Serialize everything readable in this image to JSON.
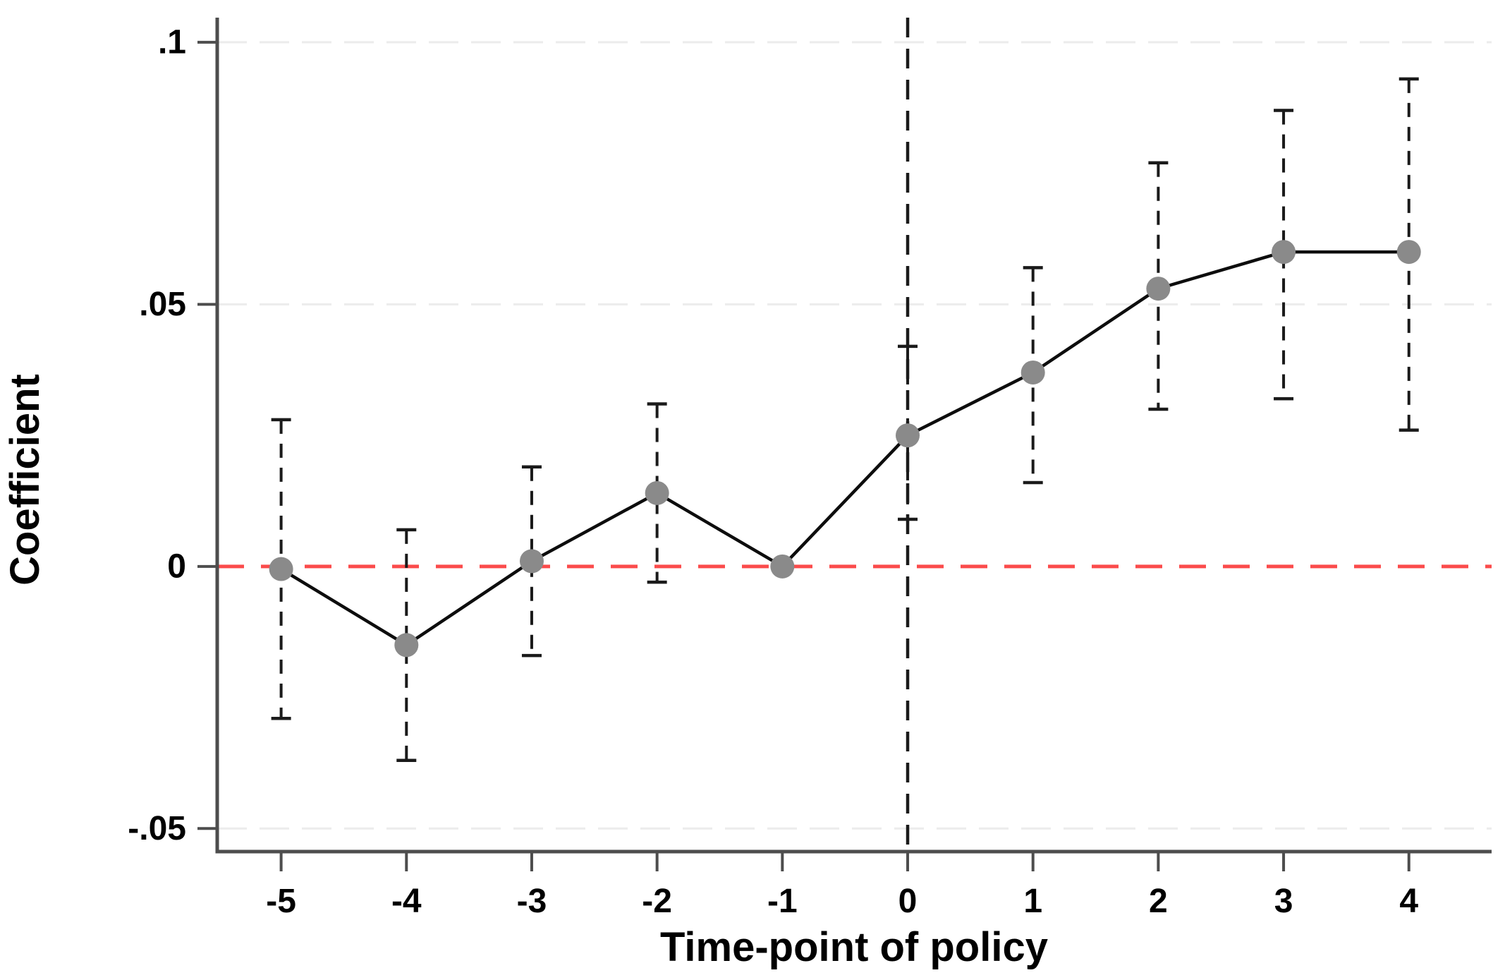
{
  "figure": {
    "background": "#ffffff"
  },
  "chart_data": {
    "type": "line",
    "title": "",
    "xlabel": "Time-point of policy",
    "ylabel": "Coefficient",
    "x": [
      -5,
      -4,
      -3,
      -2,
      -1,
      0,
      1,
      2,
      3,
      4
    ],
    "series": [
      {
        "name": "coefficient",
        "values": [
          -0.0005,
          -0.015,
          0.001,
          0.014,
          0.0,
          0.025,
          0.037,
          0.053,
          0.06,
          0.06
        ]
      }
    ],
    "ci_lower": [
      -0.029,
      -0.037,
      -0.017,
      -0.003,
      null,
      0.009,
      0.016,
      0.03,
      0.032,
      0.026
    ],
    "ci_upper": [
      0.028,
      0.007,
      0.019,
      0.031,
      null,
      0.042,
      0.057,
      0.077,
      0.087,
      0.093
    ],
    "reference_period": -1,
    "x_ticks": {
      "values": [
        -5,
        -4,
        -3,
        -2,
        -1,
        0,
        1,
        2,
        3,
        4
      ],
      "labels": [
        "-5",
        "-4",
        "-3",
        "-2",
        "-1",
        "0",
        "1",
        "2",
        "3",
        "4"
      ]
    },
    "y_ticks": {
      "values": [
        0.1,
        0.05,
        0,
        -0.05
      ],
      "labels": [
        ".1",
        ".05",
        "0",
        "-.05"
      ]
    },
    "y_gridlines": [
      0.1,
      0.05,
      -0.05
    ],
    "xlim": [
      -5.51,
      4.66
    ],
    "ylim": [
      -0.0544,
      0.1047
    ],
    "zero_line": {
      "value": 0,
      "style": "dashed",
      "color": "#fb4b4b"
    },
    "event_line": {
      "x": 0,
      "style": "dashed",
      "color": "#1a1a1a"
    },
    "grid": "horizontal-dashed",
    "legend": "none",
    "marker": {
      "shape": "circle",
      "color": "#8a8a8a"
    },
    "colors": {
      "series_line": "#0d0d0d",
      "ci": "#1a1a1a",
      "axis": "#4d4d4d",
      "grid": "#ececec",
      "tick_text": "#000000"
    }
  }
}
